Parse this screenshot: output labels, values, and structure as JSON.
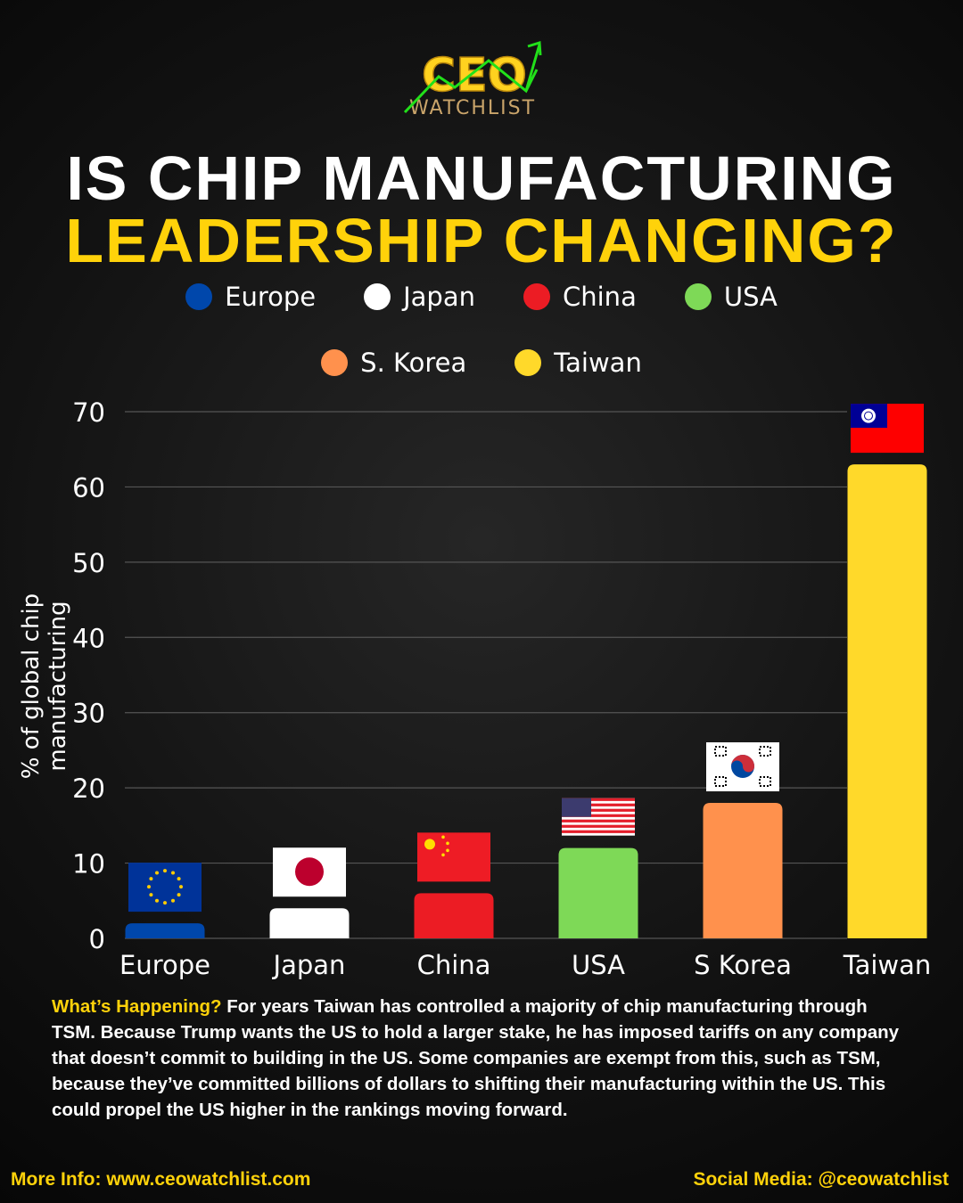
{
  "logo": {
    "text_top": "CEO",
    "text_bottom": "WATCHLIST"
  },
  "title": {
    "line1": "IS CHIP MANUFACTURING",
    "line2": "LEADERSHIP CHANGING?"
  },
  "chart_data": {
    "type": "bar",
    "title": "Is Chip Manufacturing Leadership Changing?",
    "categories": [
      "Europe",
      "Japan",
      "China",
      "USA",
      "S Korea",
      "Taiwan"
    ],
    "values": [
      2,
      4,
      6,
      12,
      18,
      63
    ],
    "colors": [
      "#0047ab",
      "#ffffff",
      "#ec1c24",
      "#7ed957",
      "#ff914d",
      "#ffd92a"
    ],
    "legend": [
      {
        "label": "Europe",
        "color": "#0047ab"
      },
      {
        "label": "Japan",
        "color": "#ffffff"
      },
      {
        "label": "China",
        "color": "#ec1c24"
      },
      {
        "label": "USA",
        "color": "#7ed957"
      },
      {
        "label": "S. Korea",
        "color": "#ff914d"
      },
      {
        "label": "Taiwan",
        "color": "#ffd92a"
      }
    ],
    "legend_placement": "top",
    "xlabel": "",
    "ylabel": "% of global chip manufacturing",
    "ylim": [
      0,
      70
    ],
    "yticks": [
      0,
      10,
      20,
      30,
      40,
      50,
      60,
      70
    ],
    "grid": true
  },
  "description": {
    "highlight": "What’s Happening?",
    "body": " For years Taiwan has controlled a majority of chip manufacturing through TSM. Because Trump wants the US to hold a larger stake, he has imposed tariffs on any company that doesn’t commit to building in the US. Some companies are exempt from this, such as TSM, because they’ve committed billions of dollars to shifting their manufacturing within the US. This could propel the US higher in the rankings moving forward."
  },
  "footer": {
    "left": "More Info: www.ceowatchlist.com",
    "right": "Social Media: @ceowatchlist"
  }
}
